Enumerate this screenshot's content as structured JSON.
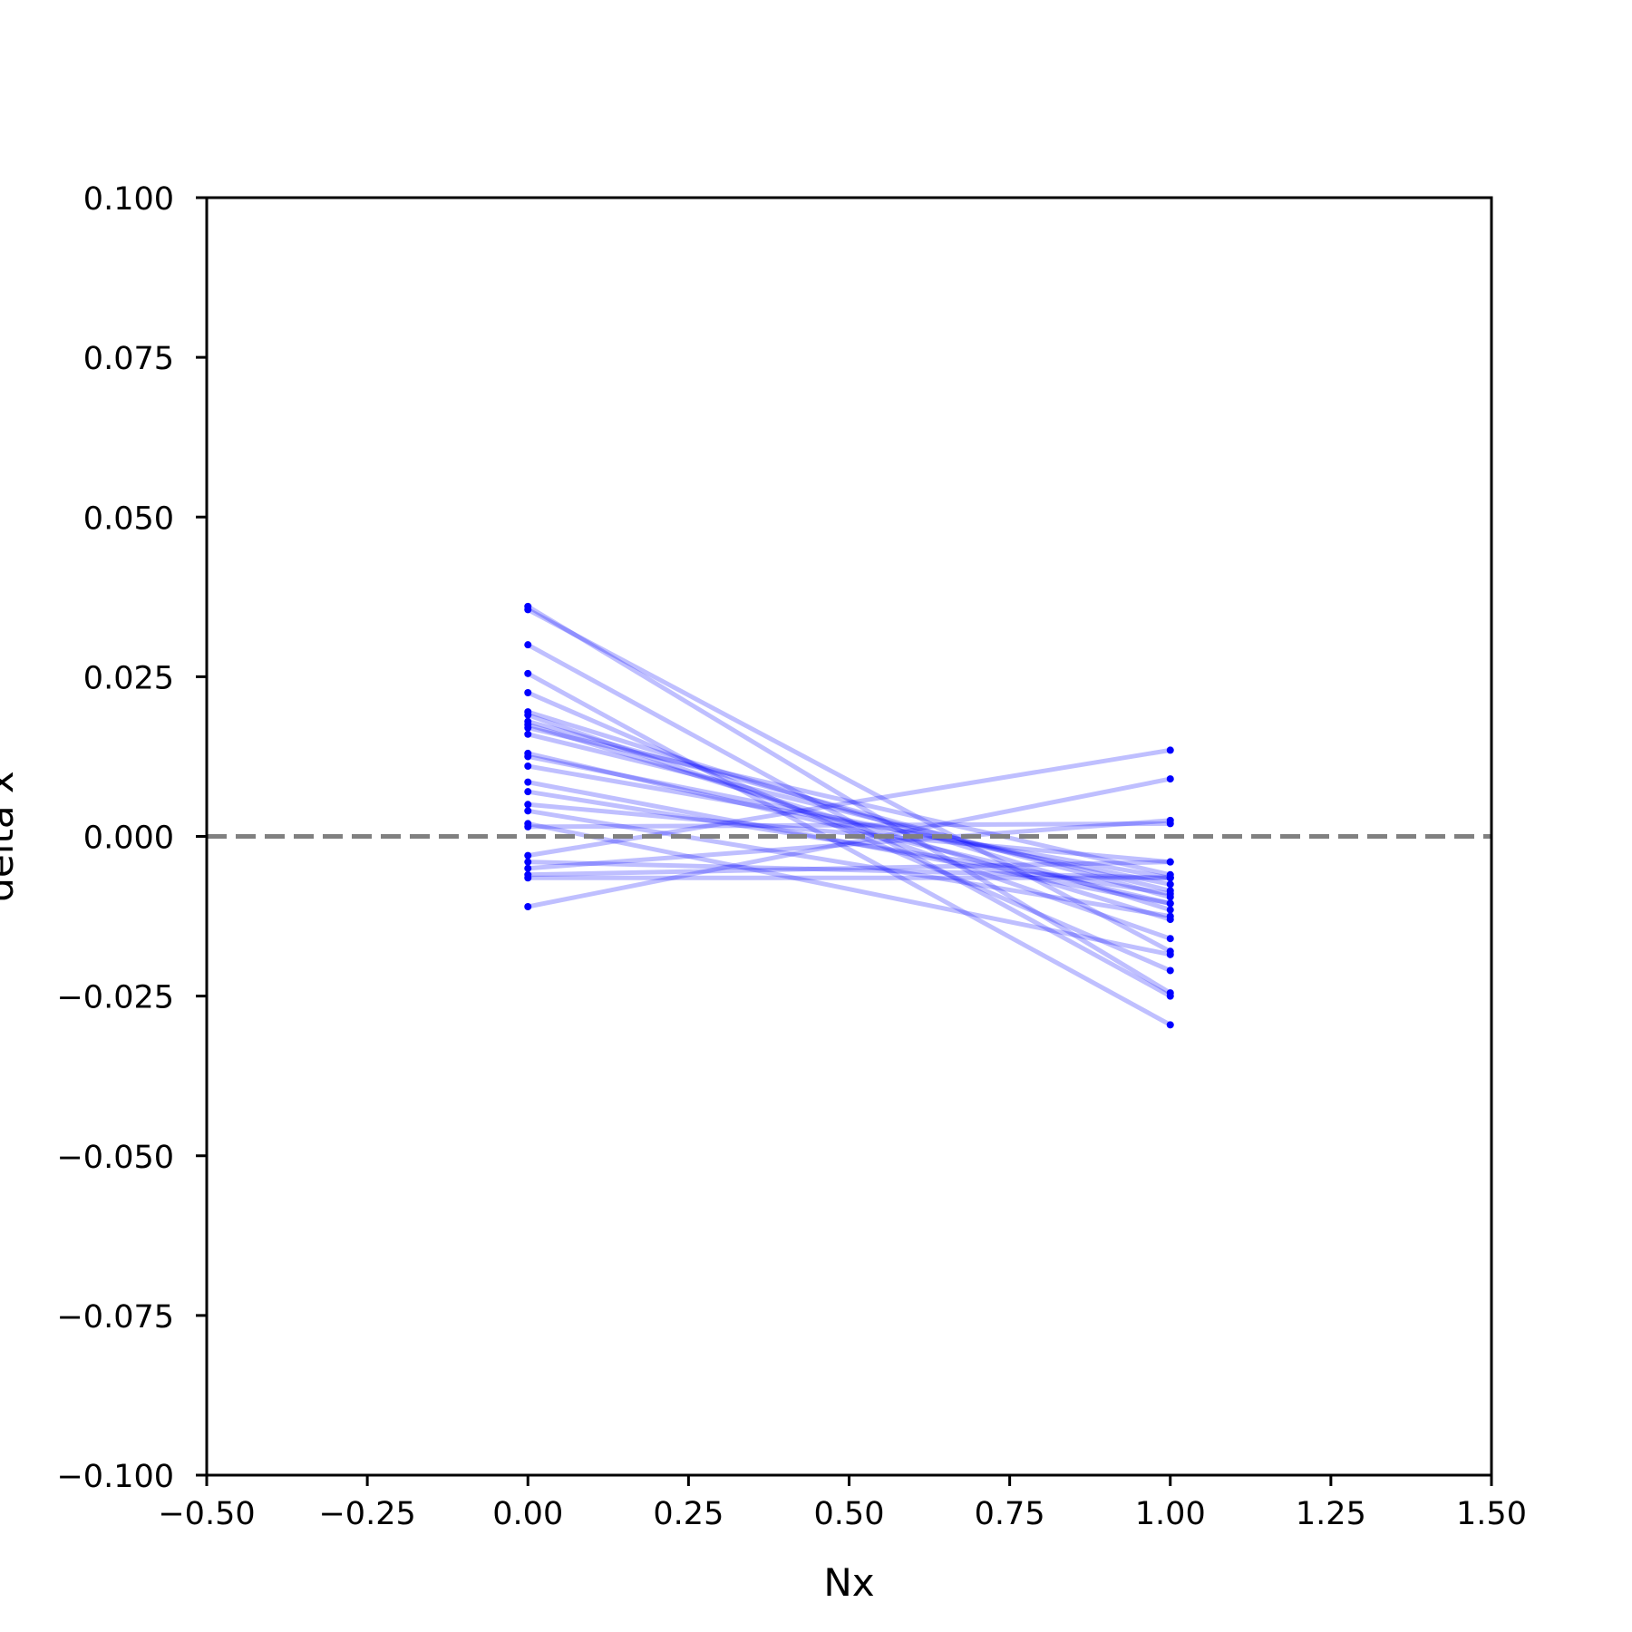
{
  "chart_data": {
    "type": "line",
    "title": "",
    "xlabel": "Nx",
    "ylabel": "delta x",
    "xlim": [
      -0.5,
      1.5
    ],
    "ylim": [
      -0.1,
      0.1
    ],
    "x_ticks": [
      "−0.50",
      "−0.25",
      "0.00",
      "0.25",
      "0.50",
      "0.75",
      "1.00",
      "1.25",
      "1.50"
    ],
    "y_ticks": [
      "−0.100",
      "−0.075",
      "−0.050",
      "−0.025",
      "0.000",
      "0.025",
      "0.050",
      "0.075",
      "0.100"
    ],
    "grid": false,
    "legend": "none",
    "reference_line": {
      "y": 0,
      "style": "dashed",
      "color": "#808080"
    },
    "series_color": "#0000ff",
    "x": [
      0,
      1
    ],
    "pairs": [
      [
        0.036,
        -0.0245
      ],
      [
        0.0355,
        -0.018
      ],
      [
        0.03,
        -0.025
      ],
      [
        0.0255,
        -0.0295
      ],
      [
        0.0225,
        -0.021
      ],
      [
        0.0195,
        -0.0115
      ],
      [
        0.019,
        -0.016
      ],
      [
        0.018,
        -0.0095
      ],
      [
        0.0175,
        -0.013
      ],
      [
        0.017,
        -0.006
      ],
      [
        0.016,
        -0.0085
      ],
      [
        0.013,
        -0.0105
      ],
      [
        0.0125,
        -0.0075
      ],
      [
        0.011,
        -0.0065
      ],
      [
        0.0085,
        -0.0105
      ],
      [
        0.007,
        -0.009
      ],
      [
        0.005,
        -0.004
      ],
      [
        0.004,
        -0.0125
      ],
      [
        0.002,
        -0.0185
      ],
      [
        0.0015,
        0.002
      ],
      [
        -0.003,
        0.0135
      ],
      [
        -0.004,
        -0.0065
      ],
      [
        -0.005,
        0.0025
      ],
      [
        -0.006,
        -0.004
      ],
      [
        -0.0065,
        -0.0065
      ],
      [
        -0.011,
        0.009
      ]
    ]
  }
}
